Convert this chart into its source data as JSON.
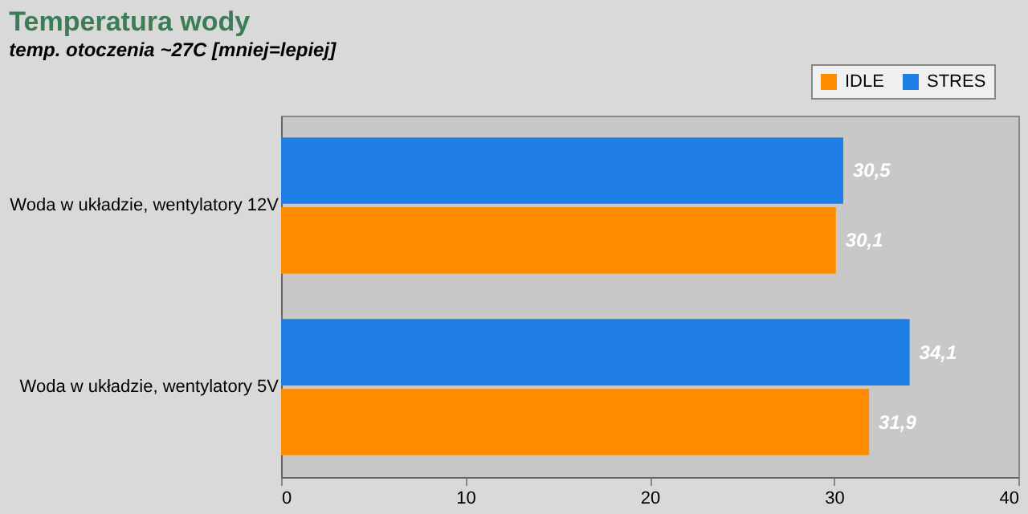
{
  "chart_data": {
    "type": "bar",
    "orientation": "horizontal",
    "title": "Temperatura wody",
    "subtitle": "temp. otoczenia ~27C [mniej=lepiej]",
    "categories": [
      "Woda w układzie, wentylatory 12V",
      "Woda w układzie, wentylatory 5V"
    ],
    "series": [
      {
        "name": "IDLE",
        "color": "#ff8c00",
        "values": [
          30.1,
          31.9
        ],
        "value_labels": [
          "30,1",
          "31,9"
        ]
      },
      {
        "name": "STRES",
        "color": "#1e7ee6",
        "values": [
          30.5,
          34.1
        ],
        "value_labels": [
          "30,5",
          "34,1"
        ]
      }
    ],
    "xlim": [
      0,
      40
    ],
    "xticks": [
      0,
      10,
      20,
      30,
      40
    ],
    "grid": false,
    "legend": "top right"
  }
}
